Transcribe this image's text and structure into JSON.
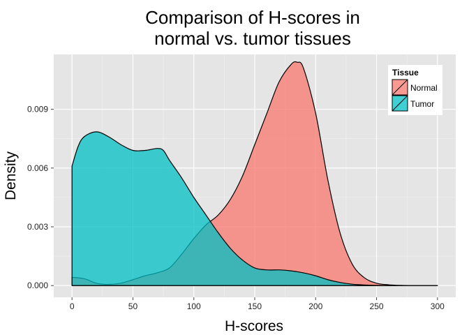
{
  "chart_data": {
    "type": "area",
    "title": "Comparison of H-scores in\nnormal vs. tumor tissues",
    "title_lines": [
      "Comparison of H-scores in",
      "normal vs. tumor tissues"
    ],
    "xlabel": "H-scores",
    "ylabel": "Density",
    "xlim": [
      -15,
      315
    ],
    "ylim": [
      -0.0006,
      0.0118
    ],
    "x_ticks": [
      0,
      50,
      100,
      150,
      200,
      250,
      300
    ],
    "x_tick_labels": [
      "0",
      "50",
      "100",
      "150",
      "200",
      "250",
      "300"
    ],
    "y_ticks": [
      0,
      0.003,
      0.006,
      0.009
    ],
    "y_tick_labels": [
      "0.000",
      "0.003",
      "0.006",
      "0.009"
    ],
    "grid": true,
    "legend": {
      "title": "Tissue",
      "placement": "top-right",
      "entries": [
        "Normal",
        "Tumor"
      ]
    },
    "series": [
      {
        "name": "Normal",
        "color": "#F8766D",
        "x": [
          0,
          10,
          20,
          30,
          40,
          50,
          60,
          70,
          80,
          90,
          100,
          110,
          120,
          130,
          140,
          150,
          160,
          170,
          180,
          185,
          190,
          200,
          210,
          220,
          230,
          240,
          250,
          260,
          270,
          280,
          290,
          300
        ],
        "y": [
          0.00042,
          0.00035,
          0.00012,
          6e-05,
          0.00012,
          0.0003,
          0.0005,
          0.00065,
          0.0009,
          0.0016,
          0.0024,
          0.0031,
          0.0036,
          0.0044,
          0.0056,
          0.0072,
          0.0088,
          0.0104,
          0.0113,
          0.0114,
          0.0111,
          0.0088,
          0.0054,
          0.0027,
          0.0011,
          0.0004,
          0.00012,
          4e-05,
          1e-05,
          0.0,
          0.0,
          0.0
        ]
      },
      {
        "name": "Tumor",
        "color": "#00BFC4",
        "x": [
          0,
          5,
          10,
          20,
          30,
          40,
          50,
          60,
          70,
          75,
          80,
          90,
          100,
          110,
          120,
          130,
          140,
          150,
          160,
          170,
          180,
          190,
          200,
          210,
          220,
          230,
          240,
          250,
          260,
          270,
          280,
          290,
          300
        ],
        "y": [
          0.0061,
          0.0071,
          0.0076,
          0.00785,
          0.0076,
          0.0072,
          0.0069,
          0.0069,
          0.007,
          0.0069,
          0.0064,
          0.0055,
          0.0045,
          0.0036,
          0.0027,
          0.0019,
          0.0013,
          0.0009,
          0.0008,
          0.0008,
          0.00075,
          0.00065,
          0.0005,
          0.0003,
          0.00016,
          7e-05,
          3e-05,
          1e-05,
          0.0,
          0.0,
          0.0,
          0.0,
          0.0
        ]
      }
    ]
  }
}
